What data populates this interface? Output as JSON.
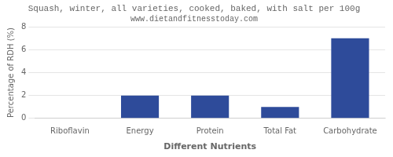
{
  "chart_data": {
    "type": "bar",
    "title": "Squash, winter, all varieties, cooked, baked, with salt per 100g",
    "subtitle": "www.dietandfitnesstoday.com",
    "xlabel": "Different Nutrients",
    "ylabel": "Percentage of RDH (%)",
    "categories": [
      "Riboflavin",
      "Energy",
      "Protein",
      "Total Fat",
      "Carbohydrate"
    ],
    "values": [
      0.0,
      2.0,
      2.0,
      1.0,
      7.0
    ],
    "color": "#2e4b9a",
    "ylim": [
      0,
      8
    ],
    "yticks": [
      0,
      2,
      4,
      6,
      8
    ],
    "grid": true
  }
}
